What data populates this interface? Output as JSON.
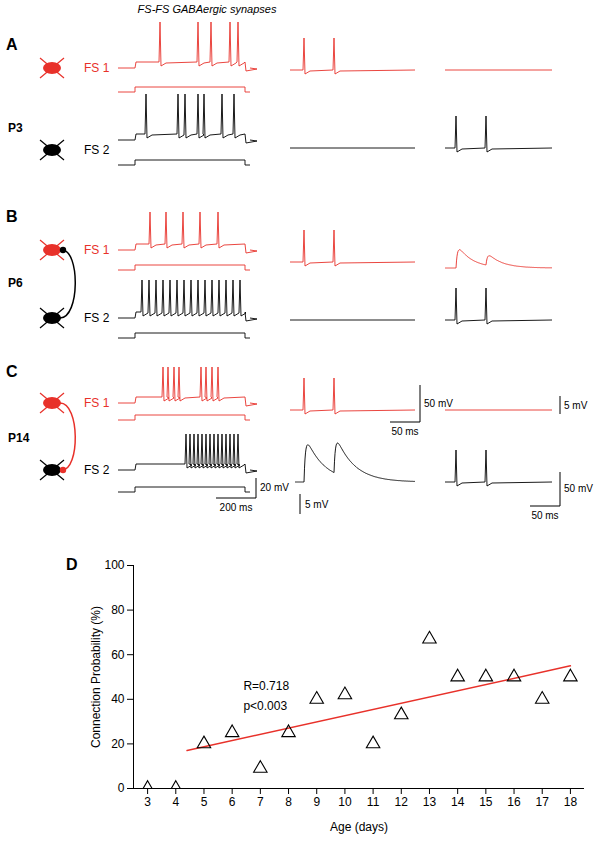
{
  "figure_title": "FS-FS GABAergic synapses",
  "cell_labels": [
    "FS 1",
    "FS 2"
  ],
  "cell_colors": [
    "#e8312a",
    "#000000"
  ],
  "panels": [
    {
      "letter": "A",
      "age": "P3",
      "connection": null
    },
    {
      "letter": "B",
      "age": "P6",
      "connection": {
        "from": "FS 2",
        "to": "FS 1"
      }
    },
    {
      "letter": "C",
      "age": "P14",
      "connection": {
        "from": "FS 1",
        "to": "FS 2"
      },
      "scale_bars": {
        "steps": [
          "20 mV",
          "200 ms"
        ],
        "fs1_spikes": [
          "50 mV",
          "50 ms"
        ],
        "fs1_response": "5 mV",
        "fs2_response": "5 mV",
        "fs2_spikes": [
          "50 mV",
          "50 ms"
        ]
      }
    }
  ],
  "chart_data": {
    "type": "scatter",
    "panel_letter": "D",
    "x": [
      3,
      4,
      5,
      6,
      7,
      8,
      9,
      10,
      11,
      12,
      13,
      14,
      15,
      16,
      17,
      18
    ],
    "values": [
      0,
      0,
      20,
      25,
      9,
      25,
      40,
      42,
      20,
      33,
      67,
      50,
      50,
      50,
      40,
      50
    ],
    "xlim": [
      2.5,
      18.5
    ],
    "xticks": [
      3,
      4,
      5,
      6,
      7,
      8,
      9,
      10,
      11,
      12,
      13,
      14,
      15,
      16,
      17,
      18
    ],
    "ylim": [
      0,
      100
    ],
    "yticks": [
      0,
      20,
      40,
      60,
      80,
      100
    ],
    "x_label": "Age (days)",
    "y_label": "Connection Probability (%)",
    "marker": "triangle",
    "color": "#000000",
    "grid": false,
    "annotations": [
      {
        "text": "R=0.718",
        "x": 6.4,
        "y": 46
      },
      {
        "text": "p<0.003",
        "x": 6.4,
        "y": 37
      }
    ],
    "trend_line": {
      "x": [
        4.4,
        18
      ],
      "y": [
        17,
        55
      ],
      "color": "#e8312a"
    }
  }
}
